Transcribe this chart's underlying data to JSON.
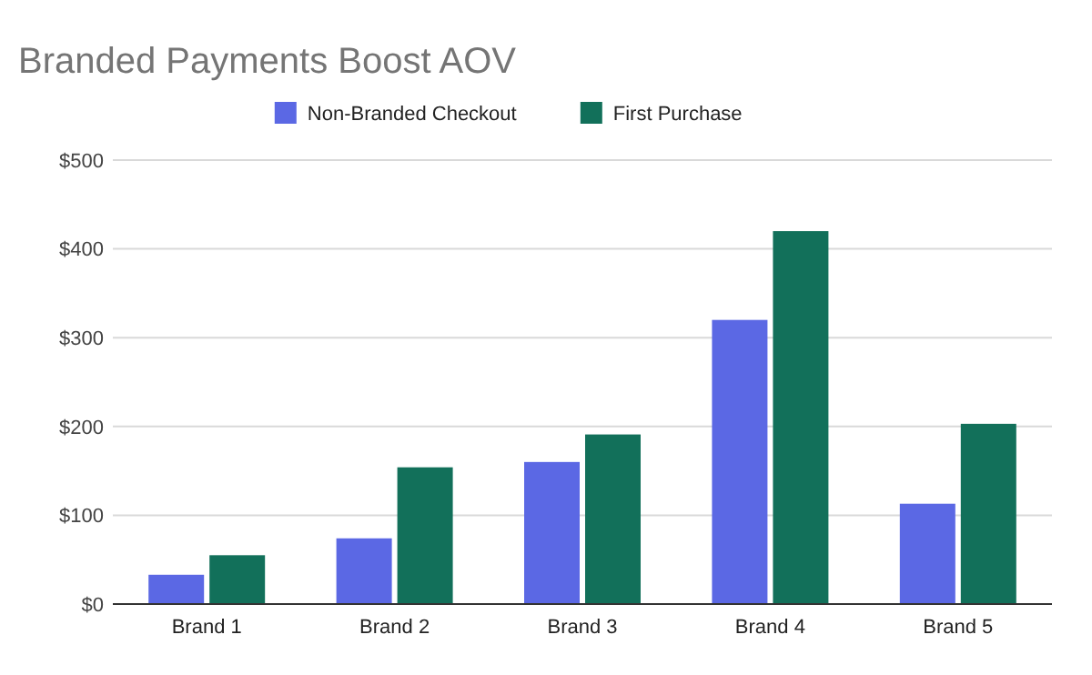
{
  "chart_data": {
    "type": "bar",
    "title": "Branded Payments Boost AOV",
    "categories": [
      "Brand 1",
      "Brand 2",
      "Brand 3",
      "Brand 4",
      "Brand 5"
    ],
    "series": [
      {
        "name": "Non-Branded Checkout",
        "color": "#5b68e4",
        "values": [
          33,
          74,
          160,
          320,
          113
        ]
      },
      {
        "name": "First Purchase",
        "color": "#12705a",
        "values": [
          55,
          154,
          191,
          420,
          203
        ]
      }
    ],
    "ylim": [
      0,
      500
    ],
    "yticks": [
      {
        "value": 0,
        "label": "$0"
      },
      {
        "value": 100,
        "label": "$100"
      },
      {
        "value": 200,
        "label": "$200"
      },
      {
        "value": 300,
        "label": "$300"
      },
      {
        "value": 400,
        "label": "$400"
      },
      {
        "value": 500,
        "label": "$500"
      }
    ],
    "grid": "y",
    "legend": "top"
  }
}
